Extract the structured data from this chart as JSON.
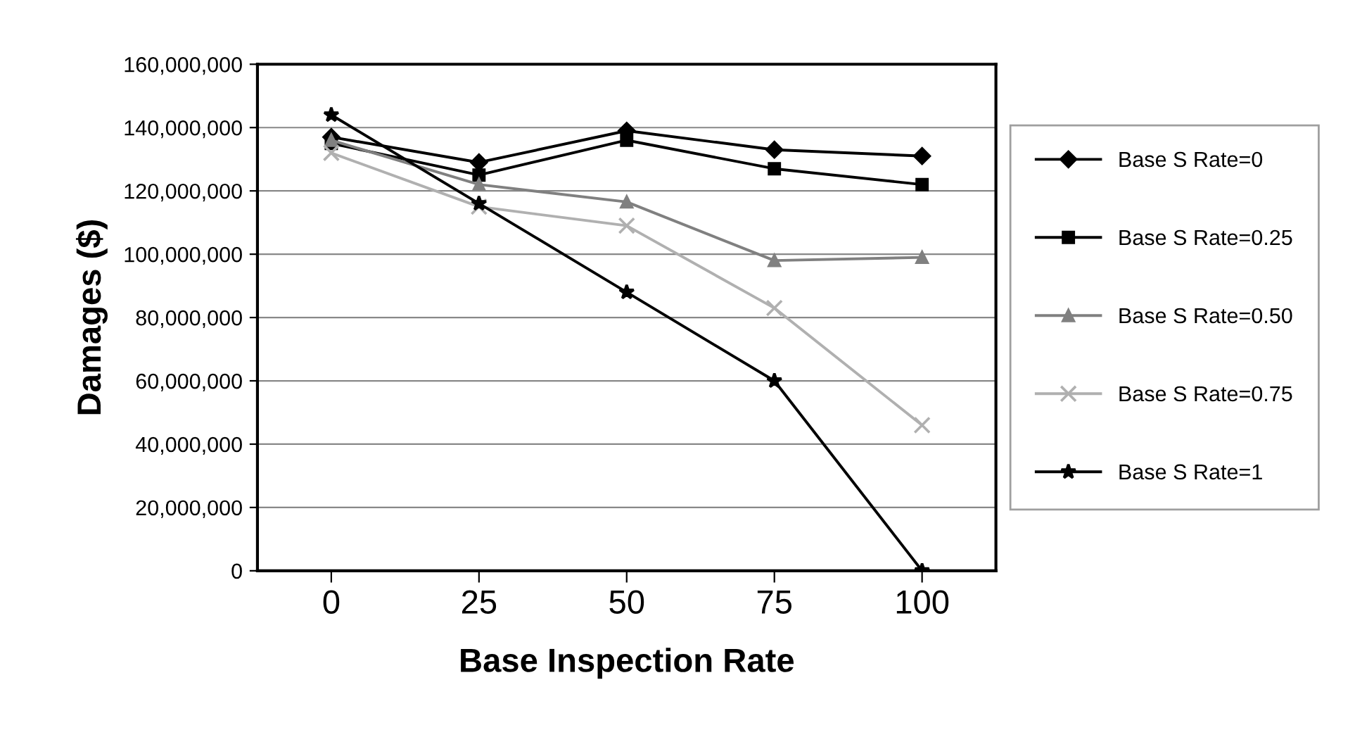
{
  "chart_data": {
    "type": "line",
    "xlabel": "Base Inspection Rate",
    "ylabel": "Damages ($)",
    "categories": [
      "0",
      "25",
      "50",
      "75",
      "100"
    ],
    "ylim": [
      0,
      160000000
    ],
    "yticks": [
      0,
      {
        "value": 20000000,
        "label": "20,000,000"
      },
      {
        "value": 40000000,
        "label": "40,000,000"
      },
      {
        "value": 60000000,
        "label": "60,000,000"
      },
      {
        "value": 80000000,
        "label": "80,000,000"
      },
      {
        "value": 100000000,
        "label": "100,000,000"
      },
      {
        "value": 120000000,
        "label": "120,000,000"
      },
      {
        "value": 140000000,
        "label": "140,000,000"
      },
      {
        "value": 160000000,
        "label": "160,000,000"
      }
    ],
    "grid": "y",
    "legend": "right",
    "series": [
      {
        "name": "Base S Rate=0",
        "color": "#000000",
        "marker": "diamond",
        "values": [
          137000000,
          129000000,
          139000000,
          133000000,
          131000000
        ]
      },
      {
        "name": "Base S Rate=0.25",
        "color": "#000000",
        "marker": "square",
        "values": [
          135000000,
          125000000,
          136000000,
          127000000,
          122000000
        ]
      },
      {
        "name": "Base S Rate=0.50",
        "color": "#808080",
        "marker": "triangle",
        "values": [
          136000000,
          122000000,
          116500000,
          98000000,
          99000000
        ]
      },
      {
        "name": "Base S Rate=0.75",
        "color": "#b0b0b0",
        "marker": "cross",
        "values": [
          132000000,
          115000000,
          109000000,
          83000000,
          46000000
        ]
      },
      {
        "name": "Base S Rate=1",
        "color": "#000000",
        "marker": "star",
        "values": [
          144000000,
          116000000,
          88000000,
          60000000,
          0
        ]
      }
    ]
  }
}
